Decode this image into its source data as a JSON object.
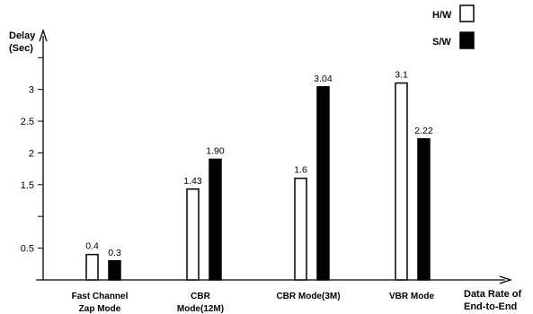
{
  "chart_data": {
    "type": "bar",
    "ylabel": [
      "Delay",
      "(Sec)"
    ],
    "xlabel": [
      "Data Rate of",
      "End-to-End"
    ],
    "categories": [
      [
        "Fast Channel",
        "Zap Mode"
      ],
      [
        "CBR",
        "Mode(12M)"
      ],
      [
        "CBR Mode(3M)"
      ],
      [
        "VBR Mode"
      ]
    ],
    "series": [
      {
        "name": "H/W",
        "values": [
          0.4,
          1.43,
          1.6,
          3.1
        ],
        "labels": [
          "0.4",
          "1.43",
          "1.6",
          "3.1"
        ],
        "fill": "#ffffff",
        "stroke": "#000000"
      },
      {
        "name": "S/W",
        "values": [
          0.3,
          1.9,
          3.04,
          2.22
        ],
        "labels": [
          "0.3",
          "1.90",
          "3.04",
          "2.22"
        ],
        "fill": "#000000",
        "stroke": "#000000"
      }
    ],
    "yticks": [
      {
        "value": 0.5,
        "label": "0.5"
      },
      {
        "value": 1,
        "label": ""
      },
      {
        "value": 1.5,
        "label": "1.5"
      },
      {
        "value": 2,
        "label": "2"
      },
      {
        "value": 2.5,
        "label": "2.5"
      },
      {
        "value": 3,
        "label": "3"
      },
      {
        "value": 3.5,
        "label": ""
      }
    ],
    "ylim": [
      0,
      3.8
    ],
    "legend": "top-right",
    "grid": false
  }
}
